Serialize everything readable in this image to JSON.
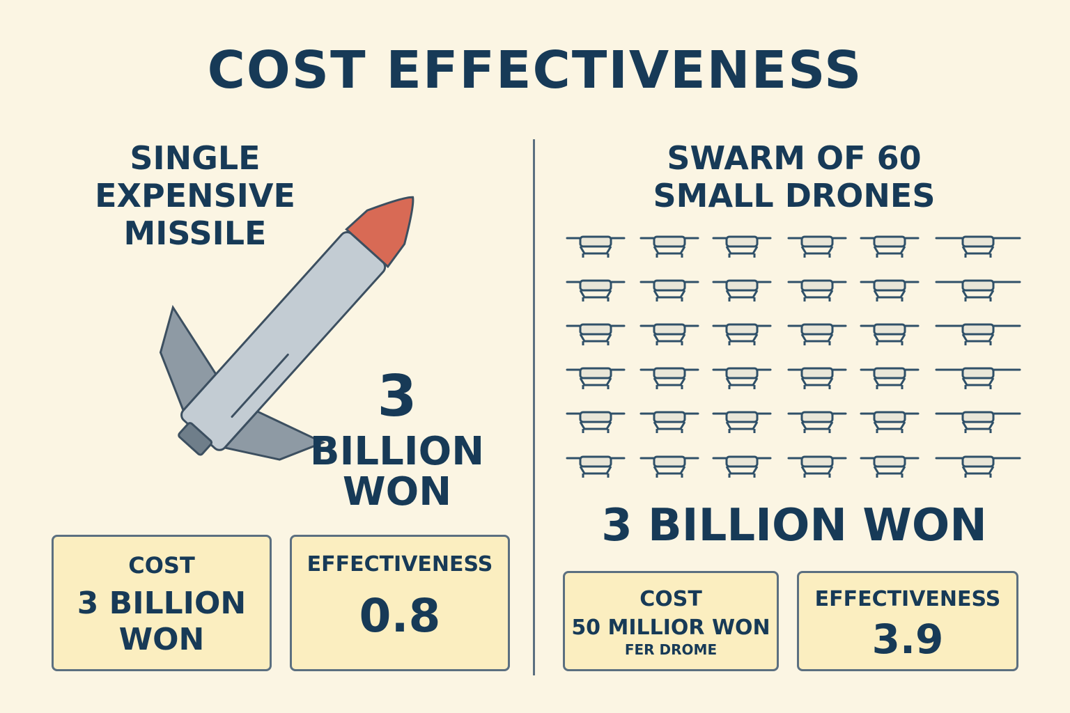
{
  "title": "COST EFFECTIVENESS",
  "missile_side": {
    "heading_lines": [
      "SINGLE",
      "EXPENSIVE",
      "MISSILE"
    ],
    "price_number": "3",
    "price_unit_lines": [
      "BILLION",
      "WON"
    ],
    "cost_box": {
      "label": "COST",
      "value_lines": [
        "3 BILLION",
        "WON"
      ]
    },
    "effectiveness_box": {
      "label": "EFFECTIVENESS",
      "value": "0.8"
    }
  },
  "drone_side": {
    "heading_lines": [
      "SWARM OF 60",
      "SMALL DRONES"
    ],
    "grid_rows": 6,
    "grid_cols": 6,
    "total_price": "3 BILLION WON",
    "cost_box": {
      "label": "COST",
      "value": "50 MILLIOR WON",
      "sub": "FER DROME"
    },
    "effectiveness_box": {
      "label": "EFFECTIVENESS",
      "value": "3.9"
    }
  },
  "colors": {
    "background": "#fbf5e3",
    "text": "#173a57",
    "box_fill": "#fbeec0",
    "missile_body": "#c3ccd3",
    "missile_nose": "#d86a55",
    "drone": "#2f5068"
  }
}
